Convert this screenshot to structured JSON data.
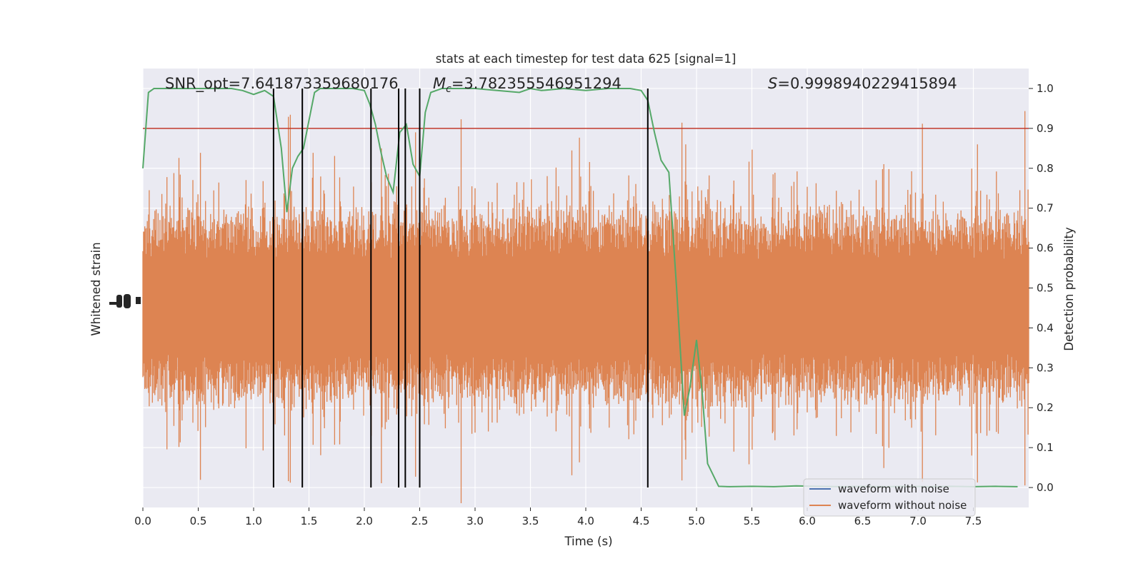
{
  "chart_data": {
    "type": "line",
    "title": "stats at each timestep for test data 625 [signal=1]",
    "xlabel": "Time (s)",
    "ylabel_left": "Whitened strain",
    "ylabel_right": "Detection probability",
    "xlim": [
      0.0,
      8.0
    ],
    "ylim_right": [
      -0.05,
      1.05
    ],
    "x_ticks": [
      "0.0",
      "0.5",
      "1.0",
      "1.5",
      "2.0",
      "2.5",
      "3.0",
      "3.5",
      "4.0",
      "4.5",
      "5.0",
      "5.5",
      "6.0",
      "6.5",
      "7.0",
      "7.5"
    ],
    "x_tick_values": [
      0.0,
      0.5,
      1.0,
      1.5,
      2.0,
      2.5,
      3.0,
      3.5,
      4.0,
      4.5,
      5.0,
      5.5,
      6.0,
      6.5,
      7.0,
      7.5
    ],
    "y_right_ticks": [
      "0.0",
      "0.1",
      "0.2",
      "0.3",
      "0.4",
      "0.5",
      "0.6",
      "0.7",
      "0.8",
      "0.9",
      "1.0"
    ],
    "y_right_tick_values": [
      0.0,
      0.1,
      0.2,
      0.3,
      0.4,
      0.5,
      0.6,
      0.7,
      0.8,
      0.9,
      1.0
    ],
    "grid": true,
    "annotations": {
      "snr": "SNR_opt=7.641873359680176",
      "mc_symbol": "M",
      "mc_sub": "c",
      "mc_value": "=3.782355546951294",
      "s_symbol": "S",
      "s_value": "=0.9998940229415894"
    },
    "threshold": {
      "value": 0.9,
      "color": "#c0392b"
    },
    "vertical_lines_x": [
      1.18,
      1.44,
      2.06,
      2.31,
      2.37,
      2.5,
      4.56
    ],
    "detection_probability": {
      "name": "detection probability",
      "color": "#55a868",
      "x": [
        0.0,
        0.05,
        0.1,
        0.2,
        0.3,
        0.4,
        0.5,
        0.6,
        0.7,
        0.8,
        0.9,
        1.0,
        1.05,
        1.1,
        1.18,
        1.25,
        1.3,
        1.35,
        1.4,
        1.45,
        1.5,
        1.55,
        1.6,
        1.7,
        1.8,
        1.9,
        2.0,
        2.05,
        2.1,
        2.15,
        2.2,
        2.26,
        2.32,
        2.38,
        2.44,
        2.5,
        2.55,
        2.6,
        2.7,
        2.8,
        2.9,
        3.0,
        3.2,
        3.4,
        3.5,
        3.6,
        3.8,
        4.0,
        4.2,
        4.4,
        4.5,
        4.56,
        4.62,
        4.68,
        4.75,
        4.82,
        4.89,
        4.94,
        5.0,
        5.05,
        5.1,
        5.2,
        5.3,
        5.5,
        5.7,
        5.9,
        6.1,
        6.3,
        6.5,
        6.7,
        6.9,
        7.1,
        7.3,
        7.5,
        7.7,
        7.9
      ],
      "y": [
        0.8,
        0.99,
        1.0,
        1.0,
        1.0,
        1.0,
        1.0,
        1.0,
        1.0,
        1.0,
        0.995,
        0.985,
        0.99,
        0.995,
        0.98,
        0.85,
        0.69,
        0.8,
        0.83,
        0.85,
        0.92,
        0.99,
        1.0,
        1.0,
        1.0,
        1.0,
        0.995,
        0.96,
        0.91,
        0.84,
        0.78,
        0.74,
        0.89,
        0.91,
        0.81,
        0.78,
        0.94,
        0.99,
        1.0,
        1.0,
        1.0,
        1.0,
        0.995,
        0.99,
        1.0,
        0.995,
        1.0,
        0.995,
        1.0,
        1.0,
        0.995,
        0.97,
        0.89,
        0.82,
        0.79,
        0.5,
        0.18,
        0.25,
        0.37,
        0.24,
        0.06,
        0.003,
        0.002,
        0.003,
        0.002,
        0.004,
        0.003,
        0.002,
        0.003,
        0.002,
        0.003,
        0.002,
        0.003,
        0.002,
        0.003,
        0.002
      ]
    },
    "series": [
      {
        "name": "waveform with noise",
        "color": "#4c72b0"
      },
      {
        "name": "waveform without noise",
        "color": "#dd8452"
      }
    ],
    "legend_position": "bottom-right"
  }
}
